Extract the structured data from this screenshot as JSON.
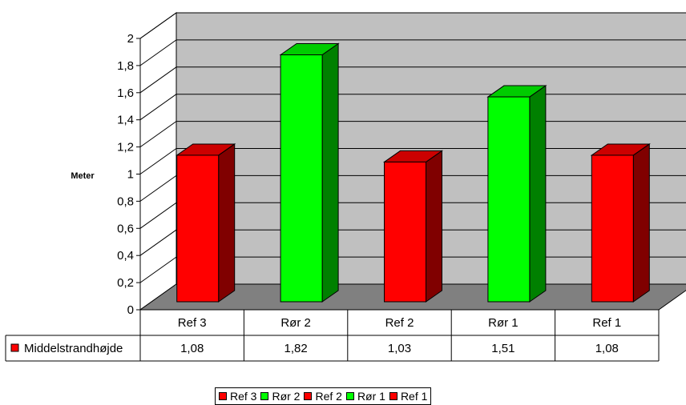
{
  "chart_data": {
    "type": "bar",
    "categories": [
      "Ref 3",
      "Rør 2",
      "Ref 2",
      "Rør 1",
      "Ref 1"
    ],
    "series": [
      {
        "name": "Middelstrandhøjde",
        "values": [
          1.08,
          1.82,
          1.03,
          1.51,
          1.08
        ]
      }
    ],
    "value_labels": [
      "1,08",
      "1,82",
      "1,03",
      "1,51",
      "1,08"
    ],
    "ylabel": "Meter",
    "ylim": [
      0,
      2
    ],
    "yticks": [
      "0",
      "0,2",
      "0,4",
      "0,6",
      "0,8",
      "1",
      "1,2",
      "1,4",
      "1,6",
      "1,8",
      "2"
    ],
    "grid": true,
    "three_d": true,
    "legend": {
      "placement": "bottom",
      "entries": [
        "Ref 3",
        "Rør 2",
        "Ref 2",
        "Rør 1",
        "Ref 1"
      ]
    },
    "colors": {
      "ref": "#ff0000",
      "ref_top": "#cc0000",
      "ref_side": "#800000",
      "ror": "#00ff00",
      "ror_top": "#00cc00",
      "ror_side": "#008000",
      "wall": "#c0c0c0",
      "floor": "#808080"
    },
    "bar_kinds": [
      "ref",
      "ror",
      "ref",
      "ror",
      "ref"
    ]
  }
}
